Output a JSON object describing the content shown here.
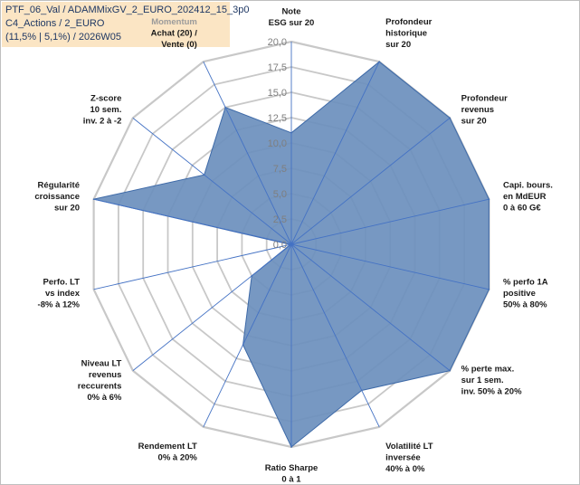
{
  "header": {
    "line1": "PTF_06_Val / ADAMMixGV_2_EURO_202412_15_3p0",
    "line2": "C4_Actions / 2_EURO",
    "line3": "(11,5% | 5,1%) / 2026W05"
  },
  "chart_data": {
    "type": "radar",
    "title": "",
    "rmin": 0,
    "rmax": 20,
    "ticks": [
      "0,0",
      "2,5",
      "5,0",
      "7,5",
      "10,0",
      "12,5",
      "15,0",
      "17,5",
      "20,0"
    ],
    "grid": true,
    "colors": {
      "fill": "#6b8fbd",
      "stroke": "#3e6aa8",
      "ring": "#c8c8c8",
      "spoke": "#4472c4"
    },
    "axes": [
      {
        "label": [
          "Note",
          "ESG sur 20"
        ],
        "value": 11.0
      },
      {
        "label": [
          "Profondeur",
          "historique",
          "sur 20"
        ],
        "value": 20.0
      },
      {
        "label": [
          "Profondeur",
          "revenus",
          "sur 20"
        ],
        "value": 20.0
      },
      {
        "label": [
          "Capi. bours.",
          "en MdEUR",
          "0 à 60 G€"
        ],
        "value": 20.0
      },
      {
        "label": [
          "% perfo 1A",
          "positive",
          "50% à 80%"
        ],
        "value": 20.0
      },
      {
        "label": [
          "% perte max.",
          "sur 1 sem.",
          "inv. 50% à 20%"
        ],
        "value": 20.0
      },
      {
        "label": [
          "Volatilité LT",
          "inversée",
          "40% à 0%"
        ],
        "value": 16.0
      },
      {
        "label": [
          "Ratio Sharpe",
          "0 à 1"
        ],
        "value": 20.0
      },
      {
        "label": [
          "Rendement LT",
          "0% à 20%"
        ],
        "value": 11.0
      },
      {
        "label": [
          "Niveau LT",
          "revenus",
          "reccurents",
          "0% à 6%"
        ],
        "value": 5.0
      },
      {
        "label": [
          "Perfo. LT",
          "vs index",
          "-8% à 12%"
        ],
        "value": 0.1
      },
      {
        "label": [
          "Régularité",
          "croissance",
          "sur 20"
        ],
        "value": 20.0
      },
      {
        "label": [
          "Z-score",
          "10 sem.",
          "inv. 2 à -2"
        ],
        "value": 11.0
      },
      {
        "label": [
          "Momentum",
          "Achat (20) /",
          "Vente (0)"
        ],
        "value": 15.0,
        "first_line_muted": true
      }
    ]
  }
}
